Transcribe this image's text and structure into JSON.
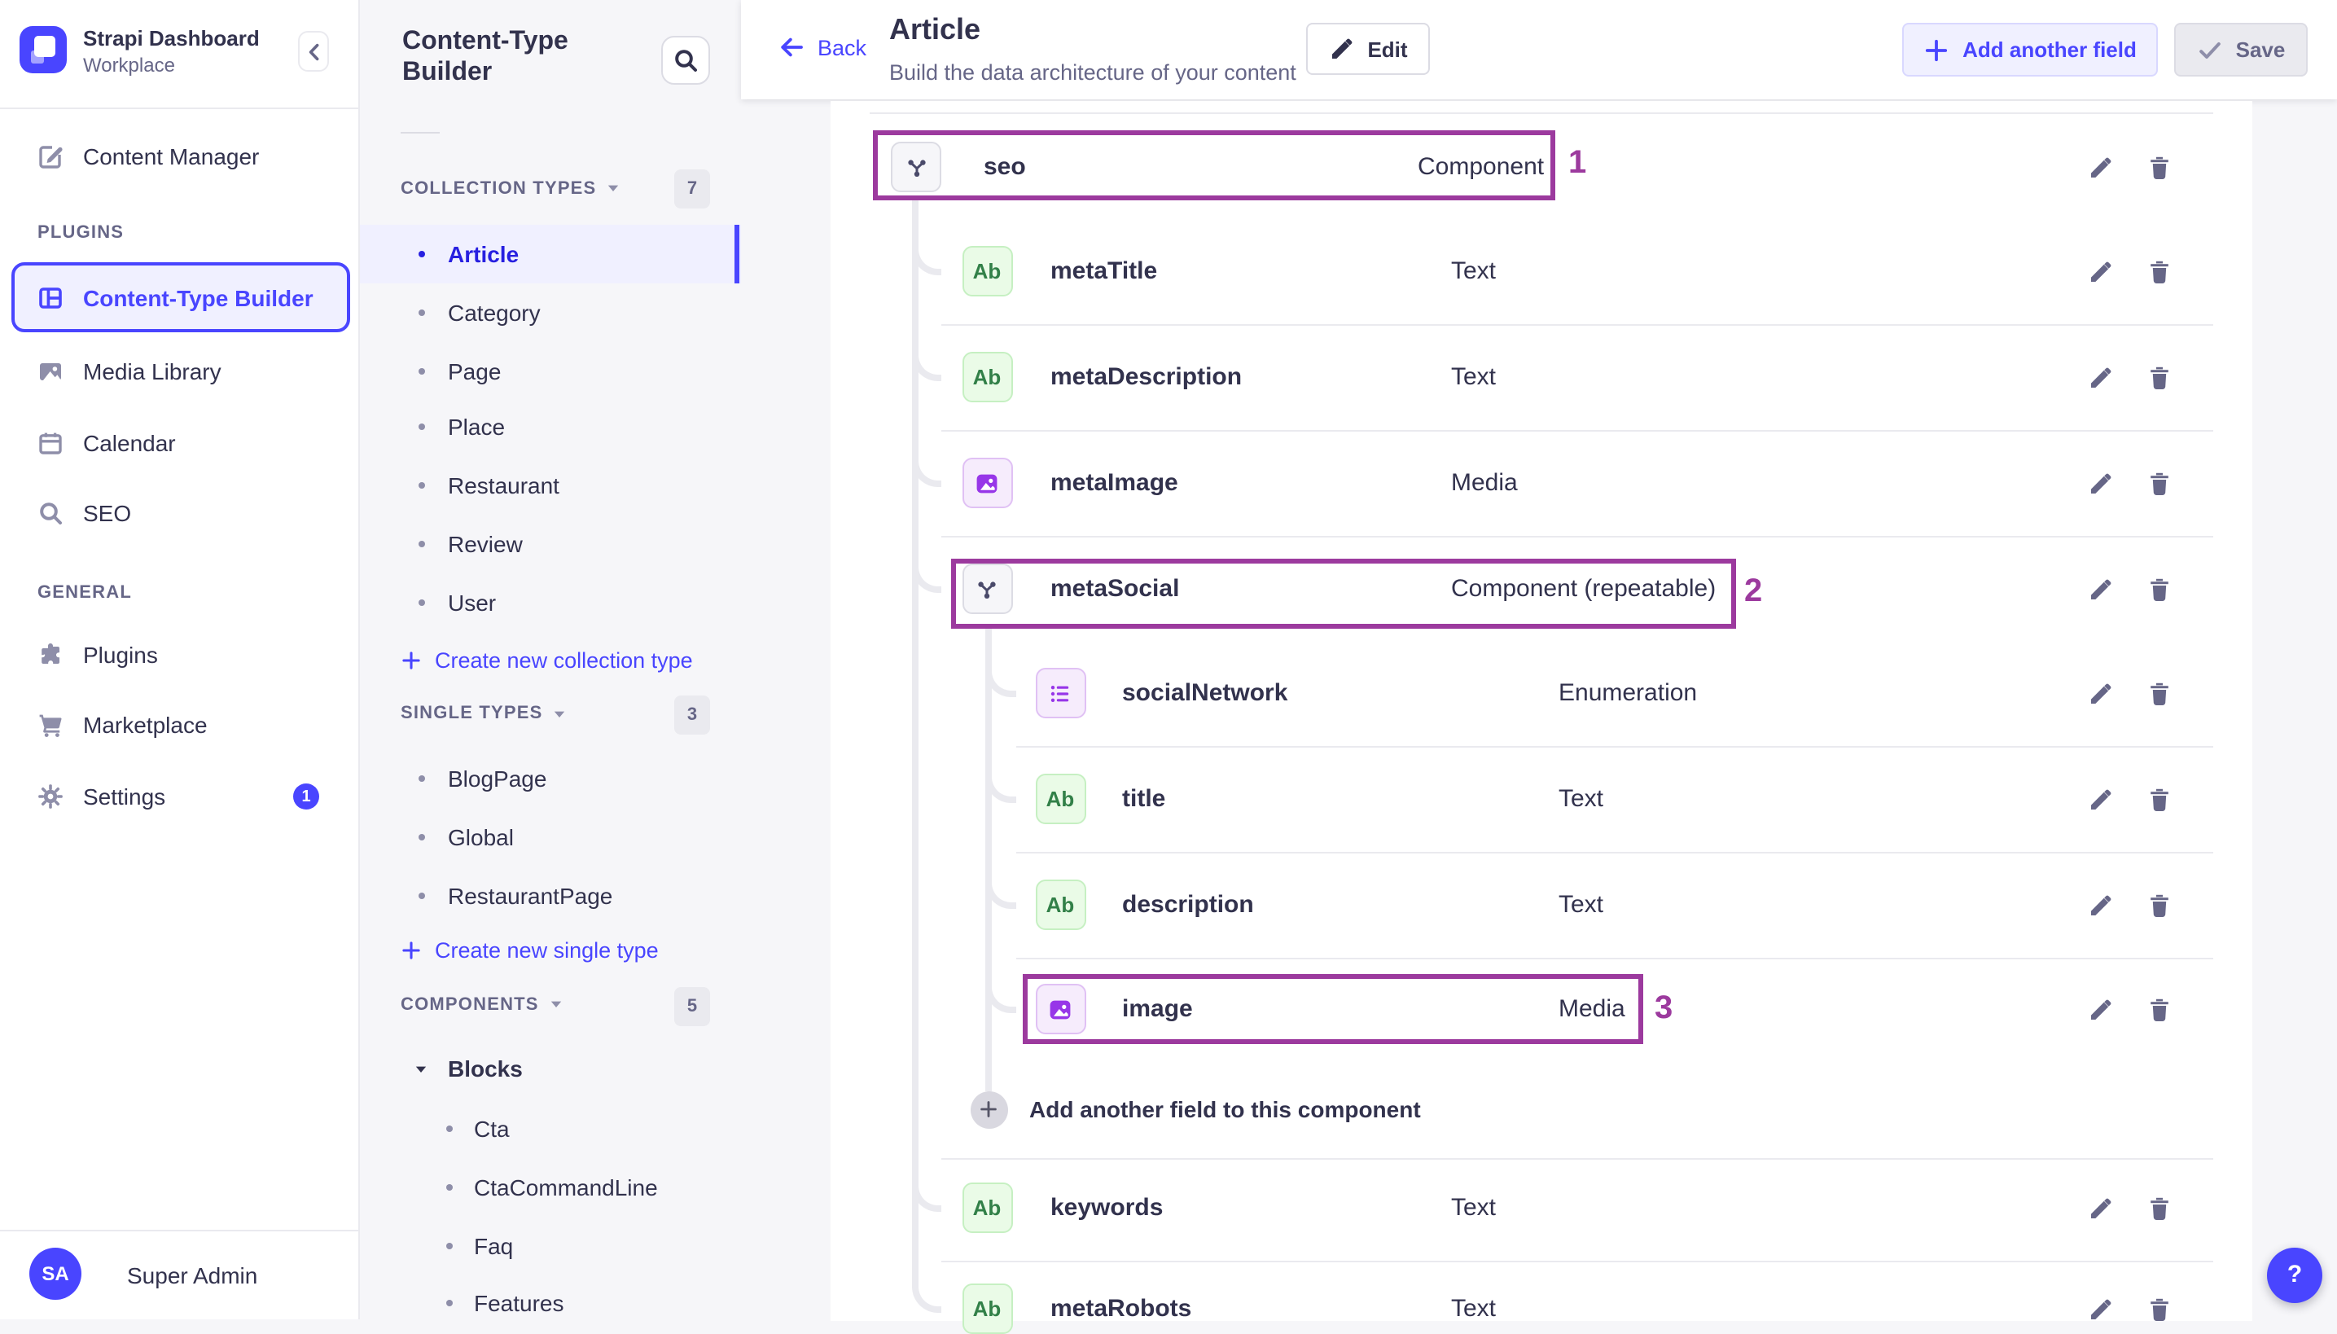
{
  "brand": {
    "title": "Strapi Dashboard",
    "workspace": "Workplace"
  },
  "sidebar": {
    "top_items": [
      {
        "label": "Content Manager",
        "icon": "content-manager"
      }
    ],
    "sections": [
      {
        "label": "PLUGINS",
        "items": [
          {
            "label": "Content-Type Builder",
            "icon": "content-type-builder",
            "selected": true
          },
          {
            "label": "Media Library",
            "icon": "media-library"
          },
          {
            "label": "Calendar",
            "icon": "calendar"
          },
          {
            "label": "SEO",
            "icon": "search"
          }
        ]
      },
      {
        "label": "GENERAL",
        "items": [
          {
            "label": "Plugins",
            "icon": "puzzle"
          },
          {
            "label": "Marketplace",
            "icon": "cart"
          },
          {
            "label": "Settings",
            "icon": "gear",
            "badge": "1"
          }
        ]
      }
    ],
    "user": {
      "initials": "SA",
      "name": "Super Admin"
    }
  },
  "subnav": {
    "title": "Content-Type Builder",
    "sections": [
      {
        "label": "COLLECTION TYPES",
        "count": "7",
        "items": [
          "Article",
          "Category",
          "Page",
          "Place",
          "Restaurant",
          "Review",
          "User"
        ],
        "selected": "Article",
        "action": "Create new collection type"
      },
      {
        "label": "SINGLE TYPES",
        "count": "3",
        "items": [
          "BlogPage",
          "Global",
          "RestaurantPage"
        ],
        "action": "Create new single type"
      },
      {
        "label": "COMPONENTS",
        "count": "5",
        "group": "Blocks",
        "items": [
          "Cta",
          "CtaCommandLine",
          "Faq",
          "Features"
        ]
      }
    ]
  },
  "header": {
    "back": "Back",
    "title": "Article",
    "subtitle": "Build the data architecture of your content",
    "edit": "Edit",
    "add_field": "Add another field",
    "save": "Save"
  },
  "table": {
    "rows": [
      {
        "name": "seo",
        "type": "Component",
        "icon": "component",
        "level": 0,
        "annotation": "1"
      },
      {
        "name": "metaTitle",
        "type": "Text",
        "icon": "text",
        "level": 1
      },
      {
        "name": "metaDescription",
        "type": "Text",
        "icon": "text",
        "level": 1
      },
      {
        "name": "metaImage",
        "type": "Media",
        "icon": "media",
        "level": 1
      },
      {
        "name": "metaSocial",
        "type": "Component (repeatable)",
        "icon": "component",
        "level": 1,
        "annotation": "2"
      },
      {
        "name": "socialNetwork",
        "type": "Enumeration",
        "icon": "enum",
        "level": 2
      },
      {
        "name": "title",
        "type": "Text",
        "icon": "text",
        "level": 2
      },
      {
        "name": "description",
        "type": "Text",
        "icon": "text",
        "level": 2
      },
      {
        "name": "image",
        "type": "Media",
        "icon": "media",
        "level": 2,
        "annotation": "3"
      },
      {
        "kind": "add",
        "label": "Add another field to this component",
        "level": 1
      },
      {
        "name": "keywords",
        "type": "Text",
        "icon": "text",
        "level": 1
      },
      {
        "name": "metaRobots",
        "type": "Text",
        "icon": "text",
        "level": 1
      }
    ]
  },
  "help": "?"
}
